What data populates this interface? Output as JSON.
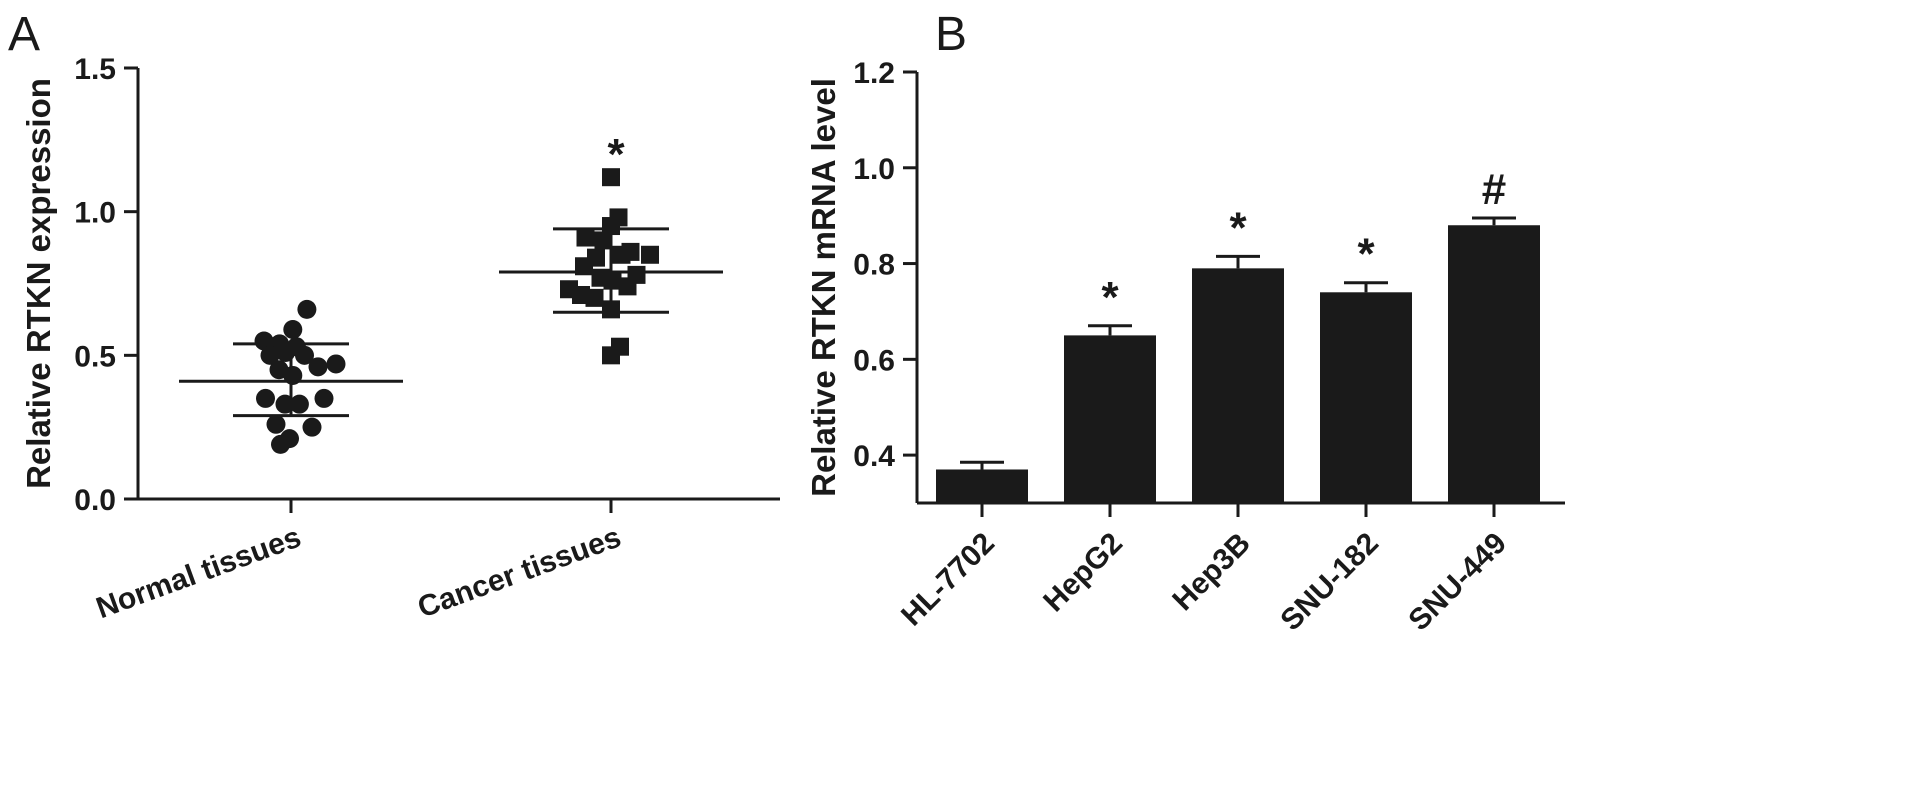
{
  "chart_data": [
    {
      "panel": "A",
      "type": "scatter",
      "ylabel": "Relative RTKN expression",
      "ylim": [
        0,
        1.5
      ],
      "yticks": [
        0.0,
        0.5,
        1.0,
        1.5
      ],
      "ytick_labels": [
        "0.0",
        "0.5",
        "1.0",
        "1.5"
      ],
      "categories": [
        "Normal tissues",
        "Cancer tissues"
      ],
      "groups": [
        {
          "category": "Normal tissues",
          "marker": "circle",
          "mean": 0.41,
          "sd_low": 0.29,
          "sd_high": 0.54,
          "significance": "",
          "points": [
            {
              "offset": 0.53,
              "value": 0.66
            },
            {
              "offset": 0.06,
              "value": 0.59
            },
            {
              "offset": -0.9,
              "value": 0.55
            },
            {
              "offset": -0.38,
              "value": 0.54
            },
            {
              "offset": 0.18,
              "value": 0.53
            },
            {
              "offset": -0.7,
              "value": 0.5
            },
            {
              "offset": -0.18,
              "value": 0.51
            },
            {
              "offset": 0.45,
              "value": 0.5
            },
            {
              "offset": 1.5,
              "value": 0.47
            },
            {
              "offset": -0.4,
              "value": 0.45
            },
            {
              "offset": 0.9,
              "value": 0.46
            },
            {
              "offset": 0.06,
              "value": 0.43
            },
            {
              "offset": -0.85,
              "value": 0.35
            },
            {
              "offset": 1.1,
              "value": 0.35
            },
            {
              "offset": -0.2,
              "value": 0.33
            },
            {
              "offset": 0.28,
              "value": 0.33
            },
            {
              "offset": -0.5,
              "value": 0.26
            },
            {
              "offset": 0.7,
              "value": 0.25
            },
            {
              "offset": -0.05,
              "value": 0.21
            },
            {
              "offset": -0.35,
              "value": 0.19
            }
          ]
        },
        {
          "category": "Cancer tissues",
          "marker": "square",
          "mean": 0.79,
          "sd_low": 0.65,
          "sd_high": 0.94,
          "significance": "*",
          "points": [
            {
              "offset": 0.0,
              "value": 1.12
            },
            {
              "offset": 0.25,
              "value": 0.98
            },
            {
              "offset": 0.0,
              "value": 0.95
            },
            {
              "offset": -0.85,
              "value": 0.91
            },
            {
              "offset": -0.25,
              "value": 0.9
            },
            {
              "offset": 0.35,
              "value": 0.85
            },
            {
              "offset": 0.65,
              "value": 0.86
            },
            {
              "offset": 1.3,
              "value": 0.85
            },
            {
              "offset": -0.9,
              "value": 0.81
            },
            {
              "offset": -0.5,
              "value": 0.84
            },
            {
              "offset": 0.85,
              "value": 0.78
            },
            {
              "offset": -0.35,
              "value": 0.77
            },
            {
              "offset": 0.05,
              "value": 0.76
            },
            {
              "offset": 0.55,
              "value": 0.74
            },
            {
              "offset": -1.4,
              "value": 0.73
            },
            {
              "offset": -1.0,
              "value": 0.71
            },
            {
              "offset": -0.55,
              "value": 0.7
            },
            {
              "offset": 0.0,
              "value": 0.66
            },
            {
              "offset": 0.3,
              "value": 0.53
            },
            {
              "offset": 0.0,
              "value": 0.5
            }
          ]
        }
      ]
    },
    {
      "panel": "B",
      "type": "bar",
      "ylabel": "Relative RTKN mRNA level",
      "ylim": [
        0.3,
        1.2
      ],
      "yticks": [
        0.4,
        0.6,
        0.8,
        1.0,
        1.2
      ],
      "ytick_labels": [
        "0.4",
        "0.6",
        "0.8",
        "1.0",
        "1.2"
      ],
      "categories": [
        "HL-7702",
        "HepG2",
        "Hep3B",
        "SNU-182",
        "SNU-449"
      ],
      "values": [
        0.37,
        0.65,
        0.79,
        0.74,
        0.88
      ],
      "errors": [
        0.015,
        0.02,
        0.025,
        0.02,
        0.015
      ],
      "significance": [
        "",
        "*",
        "*",
        "*",
        "#"
      ],
      "bar_color": "#1a1a1a"
    }
  ]
}
